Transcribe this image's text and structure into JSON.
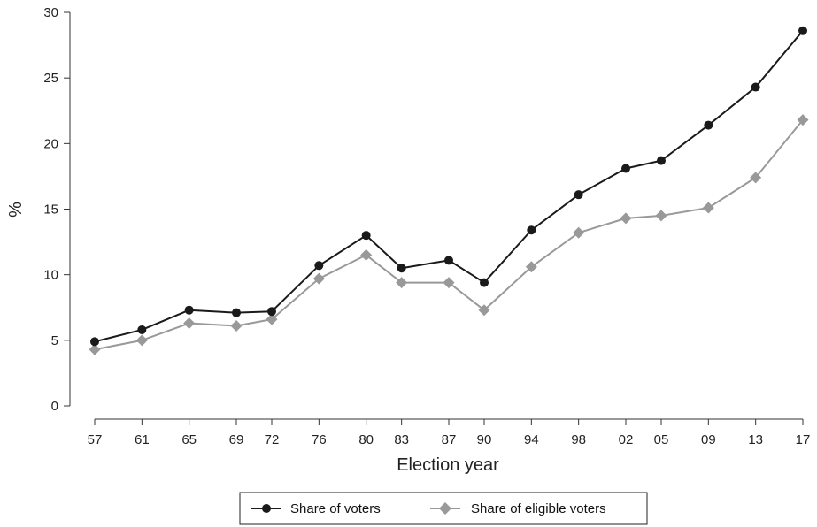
{
  "chart_data": {
    "type": "line",
    "title": "",
    "xlabel": "Election year",
    "ylabel": "%",
    "categories": [
      "57",
      "61",
      "65",
      "69",
      "72",
      "76",
      "80",
      "83",
      "87",
      "90",
      "94",
      "98",
      "02",
      "05",
      "09",
      "13",
      "17"
    ],
    "x": [
      1957,
      1961,
      1965,
      1969,
      1972,
      1976,
      1980,
      1983,
      1987,
      1990,
      1994,
      1998,
      2002,
      2005,
      2009,
      2013,
      2017
    ],
    "ylim": [
      0,
      30
    ],
    "xlim": [
      1957,
      2017
    ],
    "yticks": [
      0,
      5,
      10,
      15,
      20,
      25,
      30
    ],
    "grid": false,
    "legend_position": "bottom",
    "series": [
      {
        "name": "Share of voters",
        "marker": "circle",
        "color": "#1a1a1a",
        "values": [
          4.9,
          5.8,
          7.3,
          7.1,
          7.2,
          10.7,
          13.0,
          10.5,
          11.1,
          9.4,
          13.4,
          16.1,
          18.1,
          18.7,
          21.4,
          24.3,
          28.6
        ]
      },
      {
        "name": "Share of eligible voters",
        "marker": "diamond",
        "color": "#999999",
        "values": [
          4.3,
          5.0,
          6.3,
          6.1,
          6.6,
          9.7,
          11.5,
          9.4,
          9.4,
          7.3,
          10.6,
          13.2,
          14.3,
          14.5,
          15.1,
          17.4,
          21.8
        ]
      }
    ]
  }
}
